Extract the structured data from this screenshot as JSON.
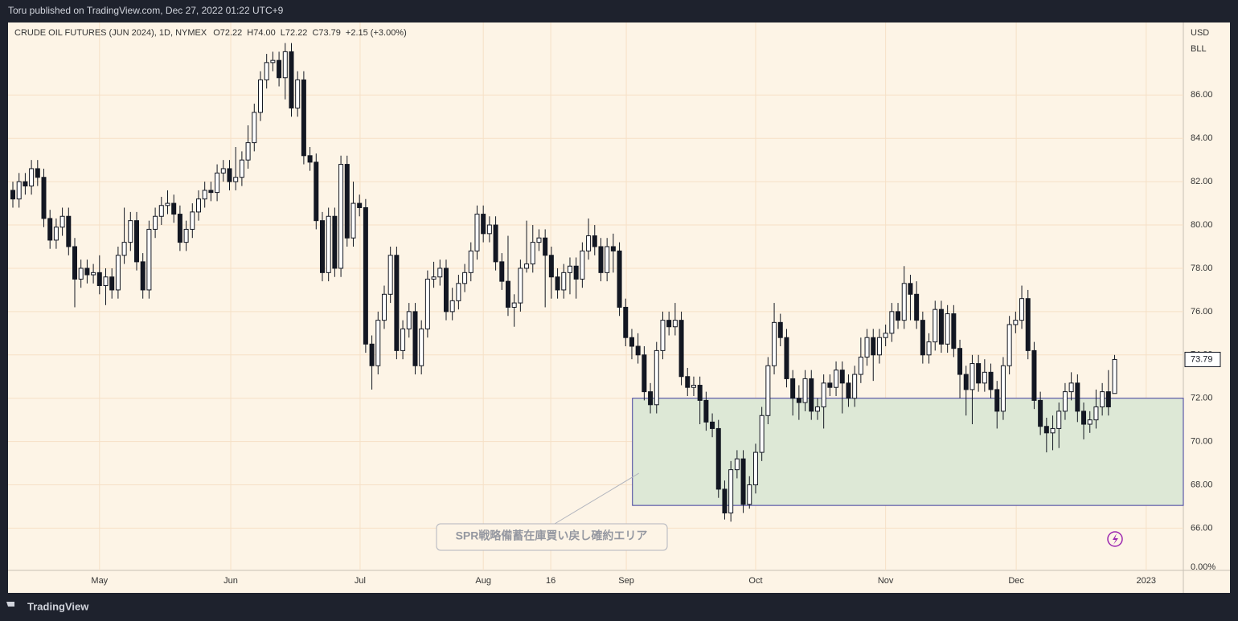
{
  "header": {
    "text": "Toru published on TradingView.com, Dec 27, 2022 01:22 UTC+9"
  },
  "chart_data": {
    "type": "candlestick",
    "legend": {
      "title": "CRUDE OIL FUTURES (JUN 2024), 1D, NYMEX",
      "items": [
        "O72.22",
        "H74.00",
        "L72.22",
        "C73.79"
      ],
      "change": "+2.15 (+3.00%)"
    },
    "currency": "USD",
    "unit": "BLL",
    "scale_label": "0.00%",
    "up_color": "#ffffff",
    "down_color": "#131722",
    "grid": true,
    "xlim": [
      -0.78,
      189.1
    ],
    "xticks": [
      {
        "value": 14.0,
        "label": "May"
      },
      {
        "value": 35.2,
        "label": "Jun"
      },
      {
        "value": 56.1,
        "label": "Jul"
      },
      {
        "value": 76.0,
        "label": "Aug"
      },
      {
        "value": 86.9,
        "label": "16"
      },
      {
        "value": 99.1,
        "label": "Sep"
      },
      {
        "value": 120.0,
        "label": "Oct"
      },
      {
        "value": 141.0,
        "label": "Nov"
      },
      {
        "value": 162.1,
        "label": "Dec"
      },
      {
        "value": 183.1,
        "label": "2023"
      }
    ],
    "ylim": [
      64.05,
      89.35
    ],
    "yticks": [
      {
        "value": 66,
        "label": "66.00"
      },
      {
        "value": 68,
        "label": "68.00"
      },
      {
        "value": 70,
        "label": "70.00"
      },
      {
        "value": 72,
        "label": "72.00"
      },
      {
        "value": 74,
        "label": "74.00"
      },
      {
        "value": 76,
        "label": "76.00"
      },
      {
        "value": 78,
        "label": "78.00"
      },
      {
        "value": 80,
        "label": "80.00"
      },
      {
        "value": 82,
        "label": "82.00"
      },
      {
        "value": 84,
        "label": "84.00"
      },
      {
        "value": 86,
        "label": "86.00"
      }
    ],
    "zone": {
      "ylim": [
        67.05,
        72.0
      ],
      "x_start": 100.1,
      "label": "SPR戦略備蓄在庫買い戻し確約エリア",
      "color": "#dde8d6",
      "border": "#3f3d9e"
    },
    "candles": [
      [
        81.6,
        82.0,
        80.8,
        81.2
      ],
      [
        81.2,
        82.4,
        80.8,
        82.0
      ],
      [
        82.0,
        82.4,
        81.4,
        81.8
      ],
      [
        81.8,
        83.0,
        81.4,
        82.6
      ],
      [
        82.6,
        83.0,
        81.8,
        82.2
      ],
      [
        82.2,
        82.6,
        79.9,
        80.3
      ],
      [
        80.3,
        80.7,
        78.9,
        79.3
      ],
      [
        79.3,
        80.3,
        78.9,
        79.9
      ],
      [
        79.9,
        80.8,
        79.5,
        80.4
      ],
      [
        80.4,
        80.8,
        78.6,
        79.0
      ],
      [
        79.0,
        79.4,
        76.2,
        77.5
      ],
      [
        77.5,
        78.4,
        77.1,
        78.0
      ],
      [
        78.0,
        78.4,
        77.3,
        77.7
      ],
      [
        77.7,
        78.2,
        77.3,
        77.8
      ],
      [
        77.8,
        78.6,
        76.8,
        77.2
      ],
      [
        77.2,
        78.0,
        76.3,
        77.6
      ],
      [
        77.6,
        78.0,
        76.6,
        77.0
      ],
      [
        77.0,
        79.0,
        76.6,
        78.6
      ],
      [
        78.6,
        80.8,
        78.2,
        79.2
      ],
      [
        79.2,
        80.6,
        78.8,
        80.2
      ],
      [
        80.2,
        80.6,
        77.9,
        78.3
      ],
      [
        78.3,
        78.7,
        76.6,
        77.0
      ],
      [
        77.0,
        80.2,
        76.6,
        79.8
      ],
      [
        79.8,
        80.8,
        79.4,
        80.4
      ],
      [
        80.4,
        81.3,
        80.0,
        80.9
      ],
      [
        80.9,
        81.6,
        80.5,
        81.0
      ],
      [
        81.0,
        81.4,
        80.1,
        80.5
      ],
      [
        80.5,
        80.9,
        78.8,
        79.2
      ],
      [
        79.2,
        80.2,
        78.8,
        79.8
      ],
      [
        79.8,
        81.0,
        79.4,
        80.6
      ],
      [
        80.6,
        81.6,
        80.2,
        81.2
      ],
      [
        81.2,
        82.0,
        80.8,
        81.6
      ],
      [
        81.6,
        82.0,
        81.1,
        81.5
      ],
      [
        81.5,
        82.8,
        81.1,
        82.4
      ],
      [
        82.4,
        83.0,
        82.0,
        82.6
      ],
      [
        82.6,
        83.0,
        81.6,
        82.0
      ],
      [
        82.0,
        83.6,
        81.6,
        82.2
      ],
      [
        82.2,
        83.4,
        81.8,
        83.0
      ],
      [
        83.0,
        84.6,
        82.6,
        83.8
      ],
      [
        83.8,
        85.6,
        83.4,
        85.2
      ],
      [
        85.2,
        87.1,
        84.8,
        86.7
      ],
      [
        86.7,
        87.9,
        86.3,
        87.5
      ],
      [
        87.5,
        88.0,
        87.1,
        87.6
      ],
      [
        87.6,
        88.0,
        86.4,
        86.8
      ],
      [
        86.8,
        88.4,
        85.8,
        88.0
      ],
      [
        88.0,
        88.4,
        85.0,
        85.4
      ],
      [
        85.4,
        87.1,
        85.0,
        86.7
      ],
      [
        86.7,
        87.1,
        82.8,
        83.2
      ],
      [
        83.2,
        83.6,
        82.5,
        82.9
      ],
      [
        82.9,
        83.3,
        79.8,
        80.2
      ],
      [
        80.2,
        80.6,
        77.4,
        77.8
      ],
      [
        77.8,
        80.8,
        77.4,
        80.4
      ],
      [
        80.4,
        80.8,
        77.6,
        78.0
      ],
      [
        78.0,
        83.2,
        77.6,
        82.8
      ],
      [
        82.8,
        83.2,
        79.0,
        79.4
      ],
      [
        79.4,
        82.0,
        79.0,
        81.0
      ],
      [
        81.0,
        81.4,
        80.4,
        80.8
      ],
      [
        80.8,
        81.2,
        74.1,
        74.5
      ],
      [
        74.5,
        74.9,
        72.4,
        73.5
      ],
      [
        73.5,
        76.0,
        73.1,
        75.6
      ],
      [
        75.6,
        77.2,
        75.2,
        76.8
      ],
      [
        76.8,
        79.0,
        76.4,
        78.6
      ],
      [
        78.6,
        79.0,
        73.8,
        74.2
      ],
      [
        74.2,
        75.6,
        73.8,
        75.2
      ],
      [
        75.2,
        76.4,
        74.8,
        76.0
      ],
      [
        76.0,
        76.4,
        73.1,
        73.5
      ],
      [
        73.5,
        75.6,
        73.1,
        75.2
      ],
      [
        75.2,
        77.9,
        74.8,
        77.5
      ],
      [
        77.5,
        78.3,
        77.1,
        77.6
      ],
      [
        77.6,
        78.4,
        77.2,
        78.0
      ],
      [
        78.0,
        78.4,
        75.6,
        76.0
      ],
      [
        76.0,
        77.1,
        75.6,
        76.5
      ],
      [
        76.5,
        77.7,
        76.1,
        77.3
      ],
      [
        77.3,
        78.2,
        76.9,
        77.8
      ],
      [
        77.8,
        79.2,
        77.4,
        78.8
      ],
      [
        78.8,
        80.9,
        78.4,
        80.5
      ],
      [
        80.5,
        80.9,
        79.2,
        79.6
      ],
      [
        79.6,
        80.4,
        79.2,
        80.0
      ],
      [
        80.0,
        80.4,
        77.9,
        78.3
      ],
      [
        78.3,
        78.7,
        77.0,
        77.4
      ],
      [
        77.4,
        79.5,
        75.8,
        76.2
      ],
      [
        76.2,
        76.8,
        75.3,
        76.4
      ],
      [
        76.4,
        78.4,
        76.0,
        78.0
      ],
      [
        78.0,
        80.2,
        77.8,
        78.2
      ],
      [
        78.2,
        80.0,
        77.8,
        79.2
      ],
      [
        79.2,
        79.8,
        78.8,
        79.4
      ],
      [
        79.4,
        79.8,
        76.2,
        78.6
      ],
      [
        78.6,
        79.0,
        76.6,
        77.6
      ],
      [
        77.6,
        78.0,
        76.6,
        77.0
      ],
      [
        77.0,
        78.2,
        76.6,
        77.8
      ],
      [
        77.8,
        78.5,
        76.8,
        78.1
      ],
      [
        78.1,
        78.5,
        76.6,
        77.5
      ],
      [
        77.5,
        79.2,
        77.1,
        78.8
      ],
      [
        78.8,
        80.3,
        78.4,
        79.5
      ],
      [
        79.5,
        80.0,
        78.6,
        79.0
      ],
      [
        79.0,
        79.4,
        77.4,
        77.8
      ],
      [
        77.8,
        79.4,
        77.4,
        79.0
      ],
      [
        79.0,
        79.6,
        77.8,
        78.8
      ],
      [
        78.8,
        79.2,
        75.8,
        76.2
      ],
      [
        76.2,
        76.6,
        74.4,
        74.8
      ],
      [
        74.8,
        75.2,
        73.8,
        74.4
      ],
      [
        74.4,
        75.0,
        73.6,
        74.0
      ],
      [
        74.0,
        74.4,
        71.9,
        72.3
      ],
      [
        72.3,
        72.7,
        71.3,
        71.7
      ],
      [
        71.7,
        74.6,
        71.3,
        74.2
      ],
      [
        74.2,
        76.0,
        73.8,
        75.6
      ],
      [
        75.6,
        76.0,
        74.9,
        75.3
      ],
      [
        75.3,
        76.4,
        74.9,
        75.6
      ],
      [
        75.6,
        76.0,
        72.6,
        73.0
      ],
      [
        73.0,
        73.4,
        72.1,
        72.5
      ],
      [
        72.5,
        73.0,
        72.1,
        72.6
      ],
      [
        72.6,
        73.0,
        70.8,
        71.9
      ],
      [
        71.9,
        72.3,
        70.5,
        70.9
      ],
      [
        70.9,
        71.3,
        70.2,
        70.6
      ],
      [
        70.6,
        71.0,
        67.4,
        67.8
      ],
      [
        67.8,
        68.2,
        66.4,
        66.7
      ],
      [
        66.7,
        69.1,
        66.3,
        68.7
      ],
      [
        68.7,
        69.6,
        68.3,
        69.2
      ],
      [
        69.2,
        69.6,
        66.7,
        67.1
      ],
      [
        67.1,
        68.4,
        66.9,
        68.0
      ],
      [
        68.0,
        69.9,
        67.6,
        69.5
      ],
      [
        69.5,
        71.6,
        69.1,
        71.2
      ],
      [
        71.2,
        73.9,
        70.8,
        73.5
      ],
      [
        73.5,
        76.4,
        73.1,
        75.5
      ],
      [
        75.5,
        75.9,
        74.4,
        74.8
      ],
      [
        74.8,
        75.2,
        72.5,
        72.9
      ],
      [
        72.9,
        73.3,
        71.2,
        72.0
      ],
      [
        72.0,
        72.6,
        71.0,
        71.8
      ],
      [
        71.8,
        73.3,
        71.4,
        72.9
      ],
      [
        72.9,
        73.3,
        71.0,
        71.4
      ],
      [
        71.4,
        72.0,
        71.0,
        71.6
      ],
      [
        71.6,
        73.1,
        70.6,
        72.7
      ],
      [
        72.7,
        73.1,
        72.1,
        72.5
      ],
      [
        72.5,
        73.7,
        72.1,
        73.3
      ],
      [
        73.3,
        73.7,
        71.3,
        72.7
      ],
      [
        72.7,
        73.1,
        71.6,
        72.0
      ],
      [
        72.0,
        73.5,
        71.6,
        73.1
      ],
      [
        73.1,
        74.8,
        72.7,
        73.9
      ],
      [
        73.9,
        75.2,
        73.5,
        74.8
      ],
      [
        74.8,
        75.2,
        72.8,
        74.0
      ],
      [
        74.0,
        75.2,
        73.6,
        74.8
      ],
      [
        74.8,
        75.4,
        74.4,
        75.0
      ],
      [
        75.0,
        76.4,
        74.6,
        76.0
      ],
      [
        76.0,
        76.4,
        75.2,
        75.6
      ],
      [
        75.6,
        78.1,
        75.2,
        77.3
      ],
      [
        77.3,
        77.7,
        75.6,
        76.8
      ],
      [
        76.8,
        77.4,
        75.2,
        75.6
      ],
      [
        75.6,
        76.0,
        73.6,
        74.0
      ],
      [
        74.0,
        75.0,
        73.6,
        74.6
      ],
      [
        74.6,
        76.5,
        74.2,
        76.1
      ],
      [
        76.1,
        76.5,
        74.1,
        74.5
      ],
      [
        74.5,
        76.3,
        74.1,
        75.9
      ],
      [
        75.9,
        76.3,
        73.9,
        74.3
      ],
      [
        74.3,
        74.7,
        72.0,
        73.1
      ],
      [
        73.1,
        73.5,
        71.2,
        72.4
      ],
      [
        72.4,
        74.0,
        70.8,
        73.6
      ],
      [
        73.6,
        74.0,
        72.3,
        72.7
      ],
      [
        72.7,
        73.8,
        72.3,
        73.2
      ],
      [
        73.2,
        73.6,
        72.0,
        72.4
      ],
      [
        72.4,
        72.8,
        70.6,
        71.4
      ],
      [
        71.4,
        73.9,
        71.0,
        73.5
      ],
      [
        73.5,
        75.8,
        73.1,
        75.4
      ],
      [
        75.4,
        76.0,
        75.0,
        75.6
      ],
      [
        75.6,
        77.2,
        75.2,
        76.6
      ],
      [
        76.6,
        77.0,
        73.8,
        74.2
      ],
      [
        74.2,
        74.6,
        71.5,
        71.9
      ],
      [
        71.9,
        72.3,
        70.3,
        70.7
      ],
      [
        70.7,
        71.1,
        69.5,
        70.4
      ],
      [
        70.4,
        71.2,
        69.6,
        70.6
      ],
      [
        70.6,
        71.8,
        69.7,
        71.4
      ],
      [
        71.4,
        72.7,
        71.0,
        72.3
      ],
      [
        72.3,
        73.2,
        71.9,
        72.7
      ],
      [
        72.7,
        73.1,
        70.9,
        71.4
      ],
      [
        71.4,
        71.8,
        70.1,
        70.8
      ],
      [
        70.8,
        71.4,
        70.4,
        71.0
      ],
      [
        71.0,
        72.4,
        70.6,
        71.6
      ],
      [
        71.6,
        72.7,
        71.2,
        72.3
      ],
      [
        72.3,
        73.3,
        71.2,
        71.6
      ],
      [
        72.22,
        74.0,
        72.22,
        73.79
      ]
    ]
  },
  "footer": {
    "brand": "TradingView"
  }
}
